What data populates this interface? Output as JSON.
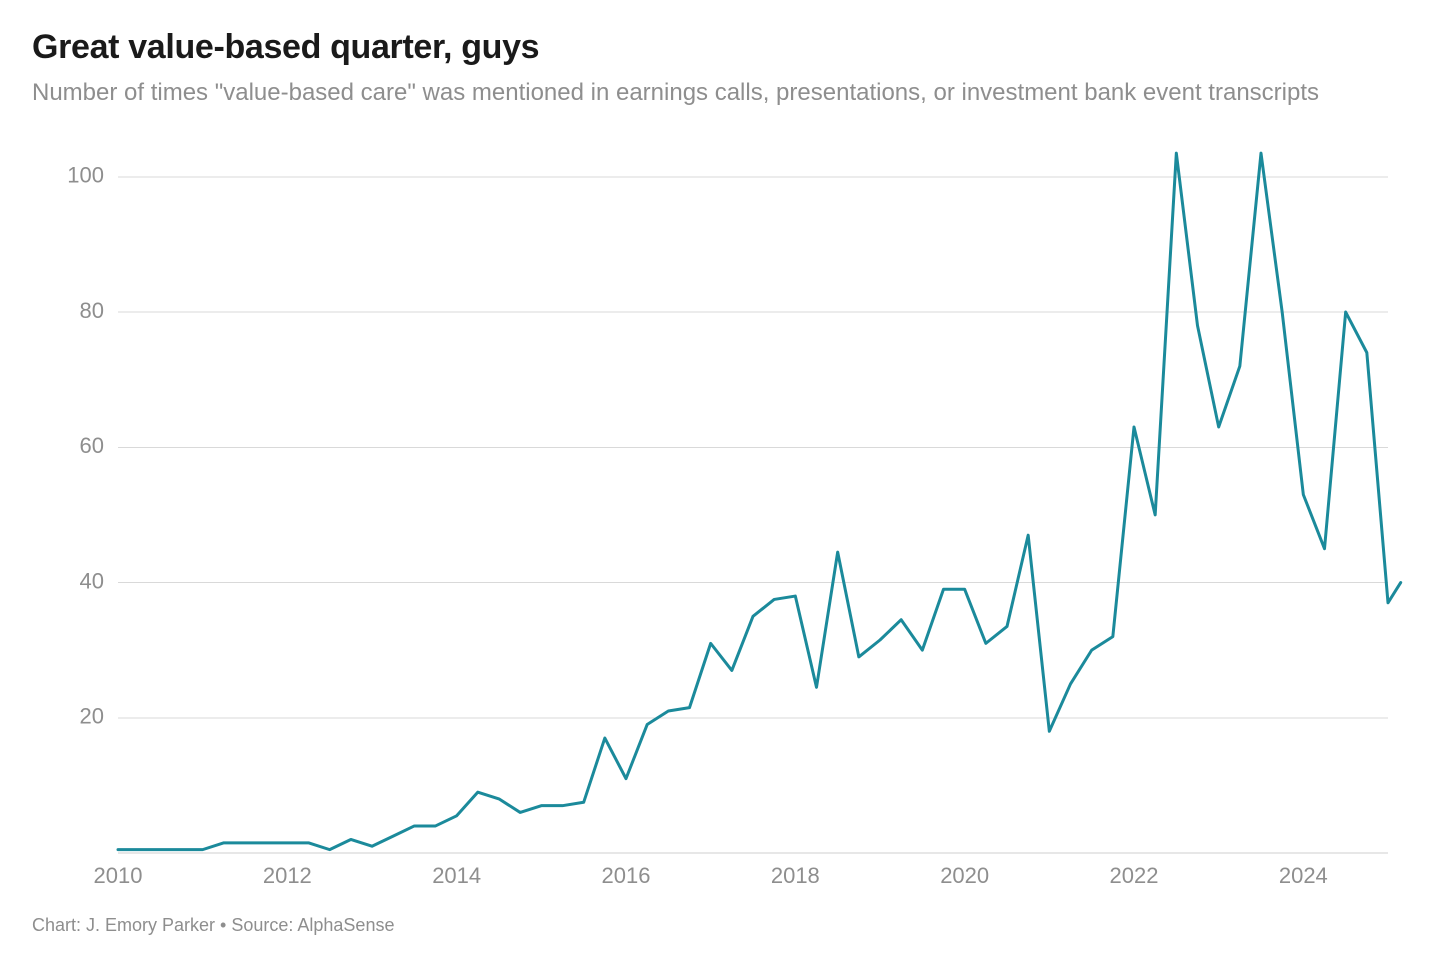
{
  "title": "Great value-based quarter, guys",
  "subtitle": "Number of times \"value-based care\" was mentioned in earnings calls, presentations, or investment bank event transcripts",
  "footer": "Chart: J. Emory Parker • Source: AlphaSense",
  "chart": {
    "type": "line",
    "background_color": "#ffffff",
    "grid_color": "#d9d9d9",
    "axis_baseline_color": "#cfcfcf",
    "axis_text_color": "#8e8e8e",
    "subtitle_color": "#8e8e8e",
    "footer_color": "#8e8e8e",
    "title_color": "#1a1a1a",
    "line_color": "#1b8a9b",
    "line_width": 3,
    "xlim": [
      2010,
      2025
    ],
    "ylim": [
      0,
      105
    ],
    "y_ticks": [
      20,
      40,
      60,
      80,
      100
    ],
    "x_ticks": [
      2010,
      2012,
      2014,
      2016,
      2018,
      2020,
      2022,
      2024
    ],
    "axis_fontsize": 22,
    "title_fontsize": 34,
    "subtitle_fontsize": 24,
    "footer_fontsize": 18,
    "series": {
      "x": [
        2010.0,
        2010.25,
        2010.5,
        2010.75,
        2011.0,
        2011.25,
        2011.5,
        2011.75,
        2012.0,
        2012.25,
        2012.5,
        2012.75,
        2013.0,
        2013.25,
        2013.5,
        2013.75,
        2014.0,
        2014.25,
        2014.5,
        2014.75,
        2015.0,
        2015.25,
        2015.5,
        2015.75,
        2016.0,
        2016.25,
        2016.5,
        2016.75,
        2017.0,
        2017.25,
        2017.5,
        2017.75,
        2018.0,
        2018.25,
        2018.5,
        2018.75,
        2019.0,
        2019.25,
        2019.5,
        2019.75,
        2020.0,
        2020.25,
        2020.5,
        2020.75,
        2021.0,
        2021.25,
        2021.5,
        2021.75,
        2022.0,
        2022.25,
        2022.5,
        2022.75,
        2023.0,
        2023.25,
        2023.5,
        2023.75,
        2024.0,
        2024.25,
        2024.5,
        2024.75,
        2025.0
      ],
      "y": [
        0.5,
        0.5,
        0.5,
        0.5,
        0.5,
        1.5,
        1.5,
        1.5,
        1.5,
        1.5,
        0.5,
        2.0,
        1.0,
        2.5,
        4.0,
        4.0,
        5.5,
        9.0,
        8.0,
        6.0,
        7.0,
        7.0,
        7.5,
        17.0,
        11.0,
        19.0,
        21.0,
        21.5,
        31.0,
        27.0,
        35.0,
        37.5,
        38.0,
        24.5,
        44.5,
        29.0,
        31.5,
        34.5,
        30.0,
        39.0,
        39.0,
        31.0,
        33.5,
        47.0,
        18.0,
        25.0,
        30.0,
        32.0,
        63.0,
        50.0,
        103.5,
        78.0,
        63.0,
        72.0,
        103.5,
        80.0,
        53.0,
        45.0,
        80.0,
        74.0,
        37.0
      ],
      "y_last_extra": {
        "x": 2025.15,
        "y": 40.0
      }
    }
  }
}
